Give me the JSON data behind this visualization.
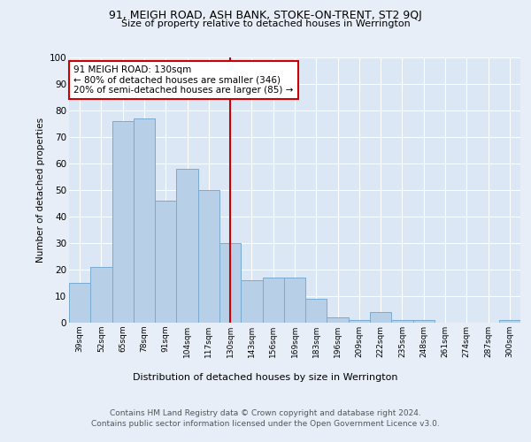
{
  "title1": "91, MEIGH ROAD, ASH BANK, STOKE-ON-TRENT, ST2 9QJ",
  "title2": "Size of property relative to detached houses in Werrington",
  "xlabel": "Distribution of detached houses by size in Werrington",
  "ylabel": "Number of detached properties",
  "categories": [
    "39sqm",
    "52sqm",
    "65sqm",
    "78sqm",
    "91sqm",
    "104sqm",
    "117sqm",
    "130sqm",
    "143sqm",
    "156sqm",
    "169sqm",
    "183sqm",
    "196sqm",
    "209sqm",
    "222sqm",
    "235sqm",
    "248sqm",
    "261sqm",
    "274sqm",
    "287sqm",
    "300sqm"
  ],
  "values": [
    15,
    21,
    76,
    77,
    46,
    58,
    50,
    30,
    16,
    17,
    17,
    9,
    2,
    1,
    4,
    1,
    1,
    0,
    0,
    0,
    1
  ],
  "bar_color": "#b8cfe8",
  "bar_edge_color": "#7aaad0",
  "highlight_index": 7,
  "highlight_line_color": "#cc0000",
  "annotation_title": "91 MEIGH ROAD: 130sqm",
  "annotation_line1": "← 80% of detached houses are smaller (346)",
  "annotation_line2": "20% of semi-detached houses are larger (85) →",
  "annotation_box_color": "#ffffff",
  "annotation_box_edge_color": "#cc0000",
  "ylim": [
    0,
    100
  ],
  "yticks": [
    0,
    10,
    20,
    30,
    40,
    50,
    60,
    70,
    80,
    90,
    100
  ],
  "background_color": "#e8eef7",
  "plot_background": "#dce7f5",
  "footer1": "Contains HM Land Registry data © Crown copyright and database right 2024.",
  "footer2": "Contains public sector information licensed under the Open Government Licence v3.0."
}
